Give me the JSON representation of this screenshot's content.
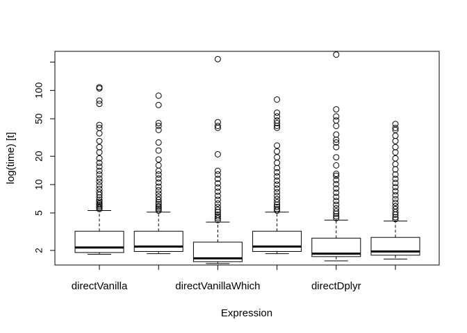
{
  "chart_data": {
    "type": "boxplot",
    "title": "",
    "xlabel": "Expression",
    "ylabel": "log(time) [t]",
    "y_scale": "log",
    "ylim": [
      1.4,
      260
    ],
    "y_ticks": [
      2,
      5,
      10,
      20,
      50,
      100,
      200
    ],
    "y_tick_labels": [
      "2",
      "5",
      "10",
      "20",
      "50",
      "100",
      ""
    ],
    "x_tick_labels": [
      "directVanilla",
      "",
      "directVanillaWhich",
      "",
      "directDplyr",
      ""
    ],
    "boxes": [
      {
        "name": "directVanilla",
        "whisker_low": 1.82,
        "q1": 1.9,
        "median": 2.15,
        "q3": 3.2,
        "whisker_high": 5.3,
        "outliers": [
          5.5,
          5.7,
          5.9,
          6.1,
          6.3,
          6.6,
          6.9,
          7.3,
          7.8,
          8.3,
          9,
          9.8,
          10.7,
          11.6,
          12.8,
          14,
          15.5,
          17,
          19,
          22,
          25,
          29,
          35,
          40,
          43,
          72,
          78,
          105,
          108
        ]
      },
      {
        "name": "",
        "whisker_low": 1.85,
        "q1": 1.95,
        "median": 2.2,
        "q3": 3.2,
        "whisker_high": 5.1,
        "outliers": [
          5.3,
          5.5,
          5.7,
          5.9,
          6.2,
          6.5,
          6.9,
          7.4,
          8,
          8.7,
          9.5,
          10.5,
          11.6,
          12.8,
          14,
          16,
          18.5,
          23,
          28,
          38,
          42,
          45,
          70,
          88
        ]
      },
      {
        "name": "directVanillaWhich",
        "whisker_low": 1.45,
        "q1": 1.52,
        "median": 1.65,
        "q3": 2.45,
        "whisker_high": 4.0,
        "outliers": [
          4.2,
          4.4,
          4.6,
          4.8,
          5.1,
          5.4,
          5.8,
          6.3,
          6.9,
          7.6,
          8.4,
          9.3,
          10.3,
          11.5,
          12.8,
          14,
          21,
          40,
          42,
          46,
          215
        ]
      },
      {
        "name": "",
        "whisker_low": 1.85,
        "q1": 1.95,
        "median": 2.2,
        "q3": 3.2,
        "whisker_high": 5.1,
        "outliers": [
          5.3,
          5.5,
          5.8,
          6.1,
          6.5,
          7,
          7.6,
          8.3,
          9.1,
          10,
          11,
          12.2,
          13.5,
          15,
          17,
          19.5,
          22.5,
          26,
          40,
          42,
          45,
          48,
          53,
          58,
          80
        ]
      },
      {
        "name": "directDplyr",
        "whisker_low": 1.55,
        "q1": 1.72,
        "median": 1.85,
        "q3": 2.7,
        "whisker_high": 4.2,
        "outliers": [
          4.4,
          4.6,
          4.9,
          5.2,
          5.6,
          6.1,
          6.7,
          7.4,
          8.2,
          9.1,
          10.1,
          11.2,
          12.4,
          13,
          16,
          19.5,
          25,
          28,
          30,
          34,
          42,
          48,
          53,
          63,
          240
        ]
      },
      {
        "name": "",
        "whisker_low": 1.62,
        "q1": 1.78,
        "median": 1.95,
        "q3": 2.75,
        "whisker_high": 4.1,
        "outliers": [
          4.3,
          4.5,
          4.8,
          5.1,
          5.5,
          5.9,
          6.4,
          7,
          7.7,
          8.5,
          9.4,
          10.4,
          11.5,
          12.8,
          14.5,
          16.5,
          19,
          22,
          25,
          29,
          33,
          38,
          40,
          44
        ]
      }
    ]
  }
}
